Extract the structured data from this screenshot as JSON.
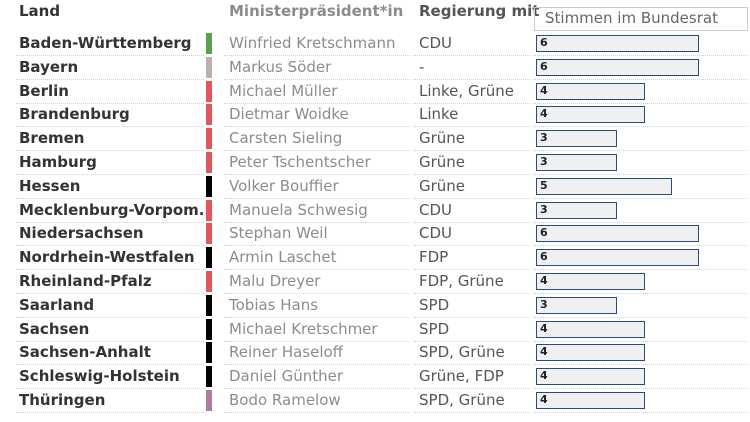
{
  "headers": {
    "land": "Land",
    "ministerpraesident": "Ministerpräsident*in",
    "regierung": "Regierung mit",
    "stimmen": "Stimmen im Bundesrat"
  },
  "colors": {
    "green": "#59a14f",
    "gray": "#bab0ac",
    "red": "#e15759",
    "black": "#000000",
    "purple": "#b07aa1",
    "bar_fill": "#f0f0f0",
    "bar_border": "#2b4a80"
  },
  "chart_data": {
    "type": "bar",
    "orientation": "horizontal",
    "xlim": [
      0,
      6.3
    ],
    "columns": [
      "Land",
      "Ministerpräsident*in",
      "Regierung mit",
      "Stimmen im Bundesrat"
    ],
    "rows": [
      {
        "land": "Baden-Württemberg",
        "mp": "Winfried Kretschmann",
        "regierung": "CDU",
        "stimmen": 6,
        "color": "#59a14f"
      },
      {
        "land": "Bayern",
        "mp": "Markus Söder",
        "regierung": "-",
        "stimmen": 6,
        "color": "#bab0ac"
      },
      {
        "land": "Berlin",
        "mp": "Michael Müller",
        "regierung": "Linke, Grüne",
        "stimmen": 4,
        "color": "#e15759"
      },
      {
        "land": "Brandenburg",
        "mp": "Dietmar Woidke",
        "regierung": "Linke",
        "stimmen": 4,
        "color": "#e15759"
      },
      {
        "land": "Bremen",
        "mp": "Carsten Sieling",
        "regierung": "Grüne",
        "stimmen": 3,
        "color": "#e15759"
      },
      {
        "land": "Hamburg",
        "mp": "Peter Tschentscher",
        "regierung": "Grüne",
        "stimmen": 3,
        "color": "#e15759"
      },
      {
        "land": "Hessen",
        "mp": "Volker Bouffier",
        "regierung": "Grüne",
        "stimmen": 5,
        "color": "#000000"
      },
      {
        "land": "Mecklenburg-Vorpom.",
        "mp": "Manuela Schwesig",
        "regierung": "CDU",
        "stimmen": 3,
        "color": "#e15759"
      },
      {
        "land": "Niedersachsen",
        "mp": "Stephan Weil",
        "regierung": "CDU",
        "stimmen": 6,
        "color": "#e15759"
      },
      {
        "land": "Nordrhein-Westfalen",
        "mp": "Armin Laschet",
        "regierung": "FDP",
        "stimmen": 6,
        "color": "#000000"
      },
      {
        "land": "Rheinland-Pfalz",
        "mp": "Malu Dreyer",
        "regierung": "FDP, Grüne",
        "stimmen": 4,
        "color": "#e15759"
      },
      {
        "land": "Saarland",
        "mp": "Tobias Hans",
        "regierung": "SPD",
        "stimmen": 3,
        "color": "#000000"
      },
      {
        "land": "Sachsen",
        "mp": "Michael Kretschmer",
        "regierung": "SPD",
        "stimmen": 4,
        "color": "#000000"
      },
      {
        "land": "Sachsen-Anhalt",
        "mp": "Reiner Haseloff",
        "regierung": "SPD, Grüne",
        "stimmen": 4,
        "color": "#000000"
      },
      {
        "land": "Schleswig-Holstein",
        "mp": "Daniel Günther",
        "regierung": "Grüne, FDP",
        "stimmen": 4,
        "color": "#000000"
      },
      {
        "land": "Thüringen",
        "mp": "Bodo Ramelow",
        "regierung": "SPD, Grüne",
        "stimmen": 4,
        "color": "#b07aa1"
      }
    ]
  }
}
